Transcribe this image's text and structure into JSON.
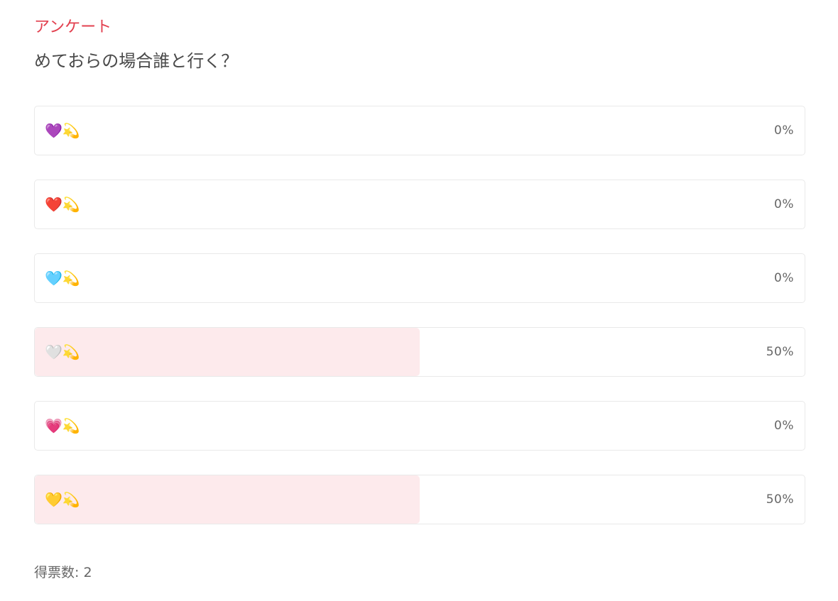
{
  "poll": {
    "label": "アンケート",
    "question": "めておらの場合誰と行く？",
    "accent_color": "#e2404f",
    "fill_color": "#fdeaec",
    "options": [
      {
        "text": "💜💫",
        "percent_label": "0%",
        "fill": 0
      },
      {
        "text": "❤️💫",
        "percent_label": "0%",
        "fill": 0
      },
      {
        "text": "🩵💫",
        "percent_label": "0%",
        "fill": 0
      },
      {
        "text": "🤍💫",
        "percent_label": "50%",
        "fill": 0.5
      },
      {
        "text": "💗💫",
        "percent_label": "0%",
        "fill": 0
      },
      {
        "text": "💛💫",
        "percent_label": "50%",
        "fill": 0.5
      }
    ],
    "vote_count_label": "得票数: 2"
  }
}
